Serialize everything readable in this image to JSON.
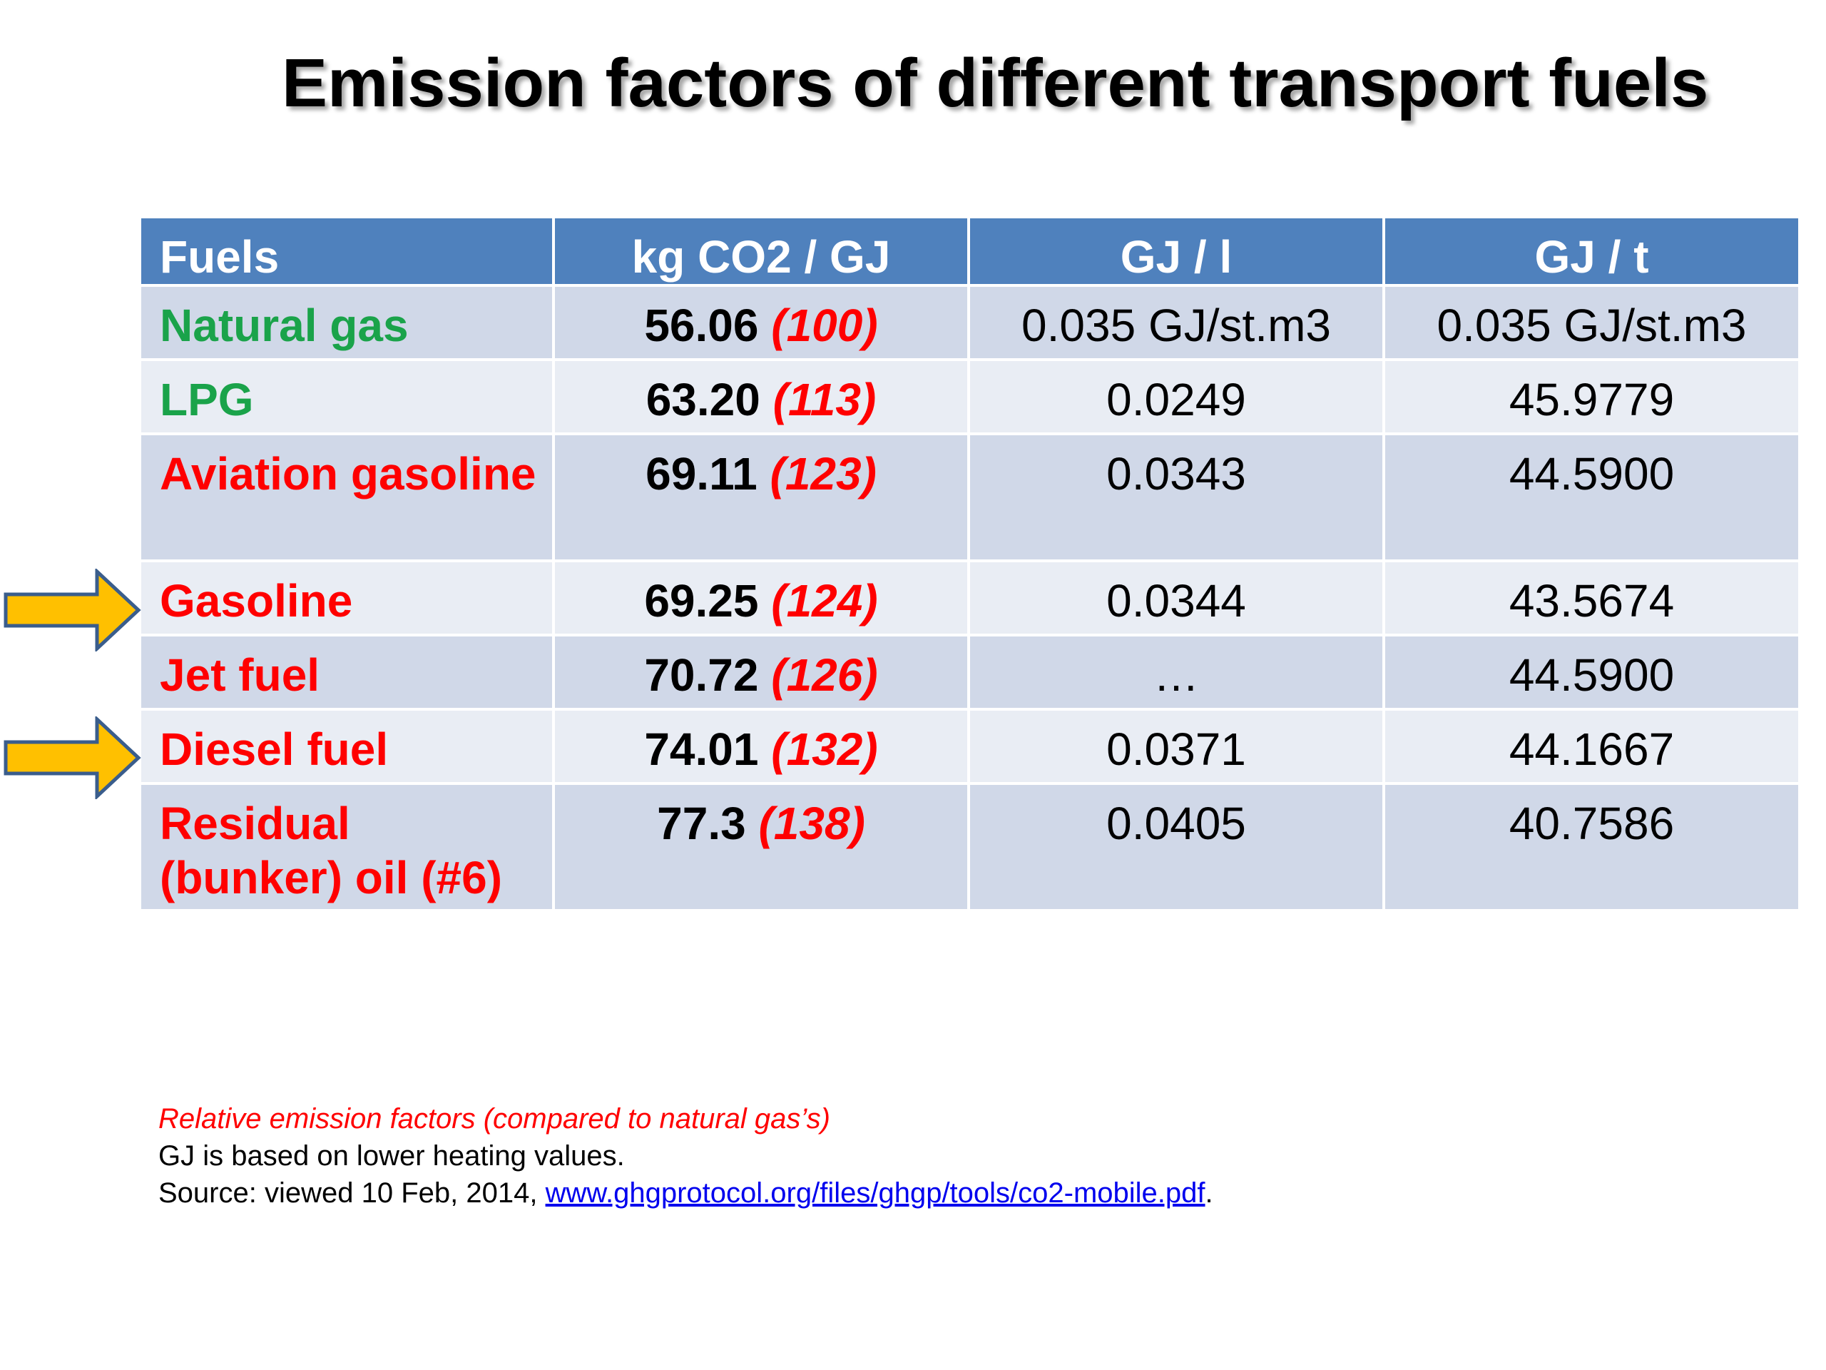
{
  "title": "Emission factors of different transport fuels",
  "table": {
    "headers": [
      "Fuels",
      "kg CO2 / GJ",
      "GJ / l",
      "GJ / t"
    ],
    "rows": [
      {
        "fuel": "Natural gas",
        "fuel_color": "#1aa34a",
        "co2": "56.06",
        "relative": "(100)",
        "gj_l": "0.035 GJ/st.m3",
        "gj_t": "0.035 GJ/st.m3"
      },
      {
        "fuel": "LPG",
        "fuel_color": "#1aa34a",
        "co2": "63.20",
        "relative": "(113)",
        "gj_l": "0.0249",
        "gj_t": "45.9779"
      },
      {
        "fuel": "Aviation gasoline",
        "fuel_color": "#ff0000",
        "co2": "69.11",
        "relative": "(123)",
        "gj_l": "0.0343",
        "gj_t": "44.5900"
      },
      {
        "fuel": "Gasoline",
        "fuel_color": "#ff0000",
        "co2": "69.25",
        "relative": "(124)",
        "gj_l": "0.0344",
        "gj_t": "43.5674"
      },
      {
        "fuel": "Jet fuel",
        "fuel_color": "#ff0000",
        "co2": "70.72",
        "relative": "(126)",
        "gj_l": "…",
        "gj_t": "44.5900"
      },
      {
        "fuel": "Diesel fuel",
        "fuel_color": "#ff0000",
        "co2": "74.01",
        "relative": "(132)",
        "gj_l": "0.0371",
        "gj_t": "44.1667"
      },
      {
        "fuel": "Residual (bunker) oil (#6)",
        "fuel_color": "#ff0000",
        "co2": "77.3",
        "relative": "(138)",
        "gj_l": "0.0405",
        "gj_t": "40.7586"
      }
    ]
  },
  "arrows": {
    "color": "#ffc000",
    "outline": "#3a5d8c",
    "icon": "right-arrow-icon"
  },
  "notes": {
    "relative_note": "Relative emission factors (compared to natural gas’s)",
    "lhv_note": "GJ is based on lower heating values.",
    "source_prefix": "Source: viewed 10 Feb, 2014, ",
    "source_link": "www.ghgprotocol.org/files/ghgp/tools/co2-mobile.pdf",
    "source_suffix": "."
  },
  "colors": {
    "header_bg": "#4f81bd",
    "row_odd": "#d0d8e8",
    "row_even": "#e9edf4",
    "green": "#1aa34a",
    "red": "#ff0000"
  }
}
